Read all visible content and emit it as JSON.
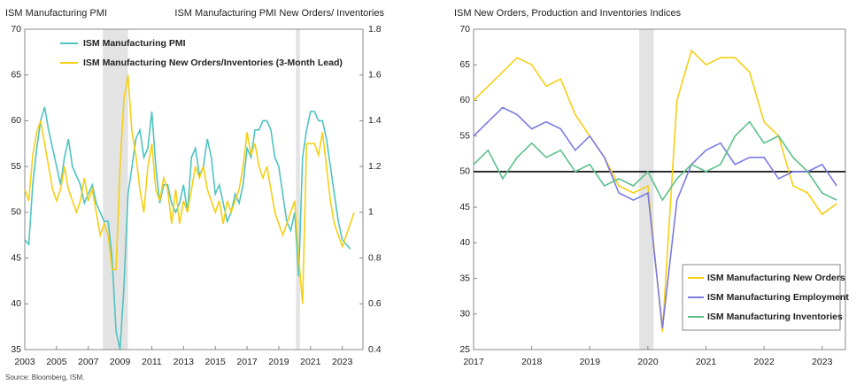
{
  "chart_data": [
    {
      "type": "line",
      "ylabel": "ISM Manufacturing PMI",
      "y2label": "ISM Manufacturing PMI New Orders/ Inventories",
      "source": "Source: Bloomberg, ISM.",
      "xlim": [
        2003,
        2024.3
      ],
      "xticks": [
        2003,
        2005,
        2007,
        2009,
        2011,
        2013,
        2015,
        2017,
        2019,
        2021,
        2023
      ],
      "ylim": [
        35,
        70
      ],
      "yticks": [
        35,
        40,
        45,
        50,
        55,
        60,
        65,
        70
      ],
      "y2lim": [
        0.4,
        1.8
      ],
      "y2ticks": [
        0.4,
        0.6,
        0.8,
        1,
        1.2,
        1.4,
        1.6,
        1.8
      ],
      "shaded_periods": [
        [
          2007.92,
          2009.5
        ],
        [
          2020.08,
          2020.33
        ]
      ],
      "legend": "upper left",
      "series": [
        {
          "name": "ISM Manufacturing PMI",
          "color": "#4fc3c0",
          "x": [
            2003,
            2003.25,
            2003.5,
            2003.75,
            2004,
            2004.25,
            2004.5,
            2004.75,
            2005,
            2005.25,
            2005.5,
            2005.75,
            2006,
            2006.25,
            2006.5,
            2006.75,
            2007,
            2007.25,
            2007.5,
            2007.75,
            2008,
            2008.25,
            2008.5,
            2008.75,
            2009,
            2009.25,
            2009.5,
            2009.75,
            2010,
            2010.25,
            2010.5,
            2010.75,
            2011,
            2011.25,
            2011.5,
            2011.75,
            2012,
            2012.25,
            2012.5,
            2012.75,
            2013,
            2013.25,
            2013.5,
            2013.75,
            2014,
            2014.25,
            2014.5,
            2014.75,
            2015,
            2015.25,
            2015.5,
            2015.75,
            2016,
            2016.25,
            2016.5,
            2016.75,
            2017,
            2017.25,
            2017.5,
            2017.75,
            2018,
            2018.25,
            2018.5,
            2018.75,
            2019,
            2019.25,
            2019.5,
            2019.75,
            2020,
            2020.25,
            2020.5,
            2020.75,
            2021,
            2021.25,
            2021.5,
            2021.75,
            2022,
            2022.25,
            2022.5,
            2022.75,
            2023,
            2023.25,
            2023.5
          ],
          "values": [
            47,
            46.5,
            53,
            57,
            60,
            61.5,
            59,
            57,
            55,
            53,
            56,
            58,
            55,
            54,
            53,
            51,
            52,
            53,
            51,
            50,
            49,
            49,
            45,
            37,
            35,
            42,
            52,
            55,
            58,
            59,
            56,
            57,
            61,
            55,
            51,
            53,
            53,
            51,
            50,
            51,
            53,
            50,
            56,
            57,
            54,
            55,
            58,
            56,
            52,
            53,
            51,
            49,
            50,
            52,
            51,
            53,
            57,
            56,
            59,
            59,
            60,
            60,
            59,
            56,
            55,
            52,
            49,
            48,
            50,
            43,
            56,
            59,
            61,
            61,
            60,
            60,
            58,
            55,
            52,
            49,
            47,
            46.5,
            46
          ]
        },
        {
          "name": "ISM Manufacturing New Orders/Inventories (3-Month Lead)",
          "color": "#f5cf16",
          "axis": "y2",
          "x": [
            2003,
            2003.25,
            2003.5,
            2003.75,
            2004,
            2004.25,
            2004.5,
            2004.75,
            2005,
            2005.25,
            2005.5,
            2005.75,
            2006,
            2006.25,
            2006.5,
            2006.75,
            2007,
            2007.25,
            2007.5,
            2007.75,
            2008,
            2008.25,
            2008.5,
            2008.75,
            2009,
            2009.25,
            2009.5,
            2009.75,
            2010,
            2010.25,
            2010.5,
            2010.75,
            2011,
            2011.25,
            2011.5,
            2011.75,
            2012,
            2012.25,
            2012.5,
            2012.75,
            2013,
            2013.25,
            2013.5,
            2013.75,
            2014,
            2014.25,
            2014.5,
            2014.75,
            2015,
            2015.25,
            2015.5,
            2015.75,
            2016,
            2016.25,
            2016.5,
            2016.75,
            2017,
            2017.25,
            2017.5,
            2017.75,
            2018,
            2018.25,
            2018.5,
            2018.75,
            2019,
            2019.25,
            2019.5,
            2019.75,
            2020,
            2020.25,
            2020.5,
            2020.75,
            2021,
            2021.25,
            2021.5,
            2021.75,
            2022,
            2022.25,
            2022.5,
            2022.75,
            2023,
            2023.25,
            2023.5,
            2023.75
          ],
          "values": [
            1.1,
            1.05,
            1.25,
            1.35,
            1.4,
            1.3,
            1.2,
            1.1,
            1.05,
            1.1,
            1.2,
            1.1,
            1.05,
            1.0,
            1.05,
            1.15,
            1.05,
            1.1,
            1.0,
            0.9,
            0.95,
            0.9,
            0.75,
            0.75,
            1.2,
            1.5,
            1.6,
            1.35,
            1.25,
            1.1,
            1.0,
            1.2,
            1.3,
            1.1,
            1.05,
            1.15,
            1.1,
            0.95,
            1.1,
            0.95,
            1.05,
            1.0,
            1.1,
            1.2,
            1.15,
            1.2,
            1.1,
            1.05,
            1.0,
            1.05,
            0.95,
            1.05,
            1.0,
            1.05,
            1.1,
            1.2,
            1.35,
            1.25,
            1.3,
            1.2,
            1.15,
            1.2,
            1.1,
            1.0,
            0.95,
            0.9,
            0.95,
            1.0,
            1.05,
            0.8,
            0.6,
            1.3,
            1.3,
            1.3,
            1.25,
            1.35,
            1.2,
            1.05,
            0.95,
            0.9,
            0.85,
            0.9,
            0.95,
            1.0
          ]
        }
      ]
    },
    {
      "type": "line",
      "title": "ISM New Orders, Production and Inventories Indices",
      "xlim": [
        2017,
        2023.4
      ],
      "xticks": [
        2017,
        2018,
        2019,
        2020,
        2021,
        2022,
        2023
      ],
      "ylim": [
        25,
        70
      ],
      "yticks": [
        25,
        30,
        35,
        40,
        45,
        50,
        55,
        60,
        65,
        70
      ],
      "shaded_periods": [
        [
          2019.85,
          2020.1
        ]
      ],
      "reference_line": 50,
      "legend": "lower right",
      "series": [
        {
          "name": "ISM Manufacturing New Orders",
          "color": "#f5cf16",
          "x": [
            2017,
            2017.25,
            2017.5,
            2017.75,
            2018,
            2018.25,
            2018.5,
            2018.75,
            2019,
            2019.25,
            2019.5,
            2019.75,
            2020,
            2020.25,
            2020.5,
            2020.75,
            2021,
            2021.25,
            2021.5,
            2021.75,
            2022,
            2022.25,
            2022.5,
            2022.75,
            2023,
            2023.25
          ],
          "values": [
            60,
            62,
            64,
            66,
            65,
            62,
            63,
            58,
            55,
            52,
            48,
            47,
            48,
            27.5,
            60,
            67,
            65,
            66,
            66,
            64,
            57,
            55,
            48,
            47,
            44,
            45.5
          ]
        },
        {
          "name": "ISM Manufacturing Employment",
          "color": "#7b7be0",
          "x": [
            2017,
            2017.25,
            2017.5,
            2017.75,
            2018,
            2018.25,
            2018.5,
            2018.75,
            2019,
            2019.25,
            2019.5,
            2019.75,
            2020,
            2020.25,
            2020.5,
            2020.75,
            2021,
            2021.25,
            2021.5,
            2021.75,
            2022,
            2022.25,
            2022.5,
            2022.75,
            2023,
            2023.25
          ],
          "values": [
            55,
            57,
            59,
            58,
            56,
            57,
            56,
            53,
            55,
            52,
            47,
            46,
            47,
            28,
            46,
            51,
            53,
            54,
            51,
            52,
            52,
            49,
            50,
            50,
            51,
            48
          ]
        },
        {
          "name": "ISM Manufacturing Inventories",
          "color": "#5cc08a",
          "x": [
            2017,
            2017.25,
            2017.5,
            2017.75,
            2018,
            2018.25,
            2018.5,
            2018.75,
            2019,
            2019.25,
            2019.5,
            2019.75,
            2020,
            2020.25,
            2020.5,
            2020.75,
            2021,
            2021.25,
            2021.5,
            2021.75,
            2022,
            2022.25,
            2022.5,
            2022.75,
            2023,
            2023.25
          ],
          "values": [
            51,
            53,
            49,
            52,
            54,
            52,
            53,
            50,
            51,
            48,
            49,
            48,
            50,
            46,
            49,
            51,
            50,
            51,
            55,
            57,
            54,
            55,
            52,
            50,
            47,
            46
          ]
        }
      ]
    }
  ]
}
